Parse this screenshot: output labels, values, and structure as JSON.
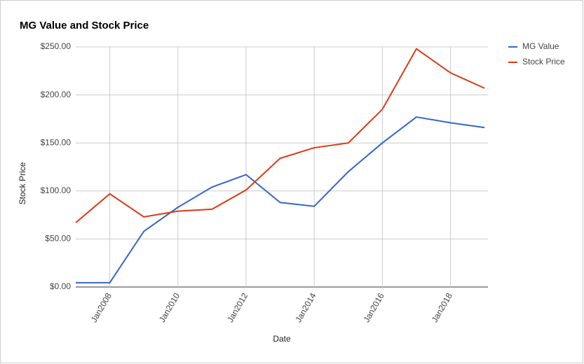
{
  "chart_data": {
    "type": "line",
    "title": "MG Value and Stock Price",
    "x_label": "Date",
    "y_label": "Stock Price",
    "x": [
      2007,
      2008,
      2009,
      2010,
      2011,
      2012,
      2013,
      2014,
      2015,
      2016,
      2017,
      2018,
      2019
    ],
    "xlim": [
      2007,
      2019.1
    ],
    "xticks": [
      {
        "value": 2008,
        "label": "Jan2008"
      },
      {
        "value": 2010,
        "label": "Jan2010"
      },
      {
        "value": 2012,
        "label": "Jan2012"
      },
      {
        "value": 2014,
        "label": "Jan2014"
      },
      {
        "value": 2016,
        "label": "Jan2016"
      },
      {
        "value": 2018,
        "label": "Jan2018"
      }
    ],
    "ylim": [
      0,
      250
    ],
    "yticks": [
      {
        "value": 0,
        "label": "$0.00"
      },
      {
        "value": 50,
        "label": "$50.00"
      },
      {
        "value": 100,
        "label": "$100.00"
      },
      {
        "value": 150,
        "label": "$150.00"
      },
      {
        "value": 200,
        "label": "$200.00"
      },
      {
        "value": 250,
        "label": "$250.00"
      }
    ],
    "grid": true,
    "series": [
      {
        "name": "MG Value",
        "color": "#3366cc",
        "values": [
          4.5,
          4.5,
          58,
          83,
          104,
          117,
          88,
          84,
          120,
          150,
          177,
          171,
          166
        ]
      },
      {
        "name": "Stock Price",
        "color": "#dc3912",
        "values": [
          67,
          97,
          73,
          79,
          81,
          101,
          134,
          145,
          150,
          185,
          248,
          223,
          207
        ]
      }
    ]
  }
}
